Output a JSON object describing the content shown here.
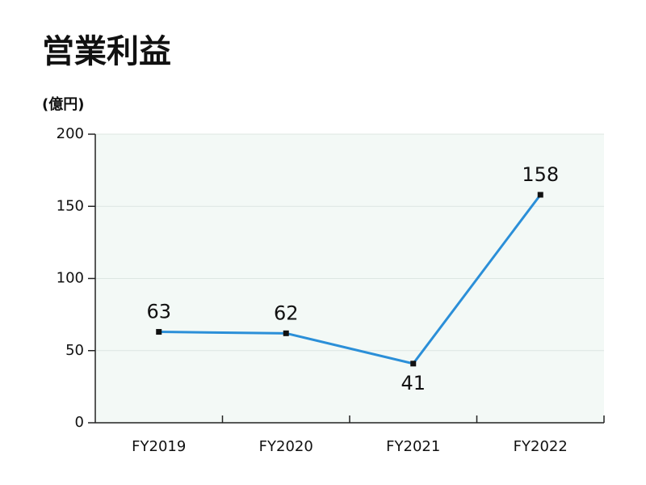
{
  "chart_data": {
    "type": "line",
    "title": "営業利益",
    "y_axis_label": "(億円)",
    "categories": [
      "FY2019",
      "FY2020",
      "FY2021",
      "FY2022"
    ],
    "values": [
      63,
      62,
      41,
      158
    ],
    "color": "#2b8fd8",
    "ylim": [
      0,
      200
    ],
    "yticks": [
      0,
      50,
      100,
      150,
      200
    ],
    "grid": true
  }
}
